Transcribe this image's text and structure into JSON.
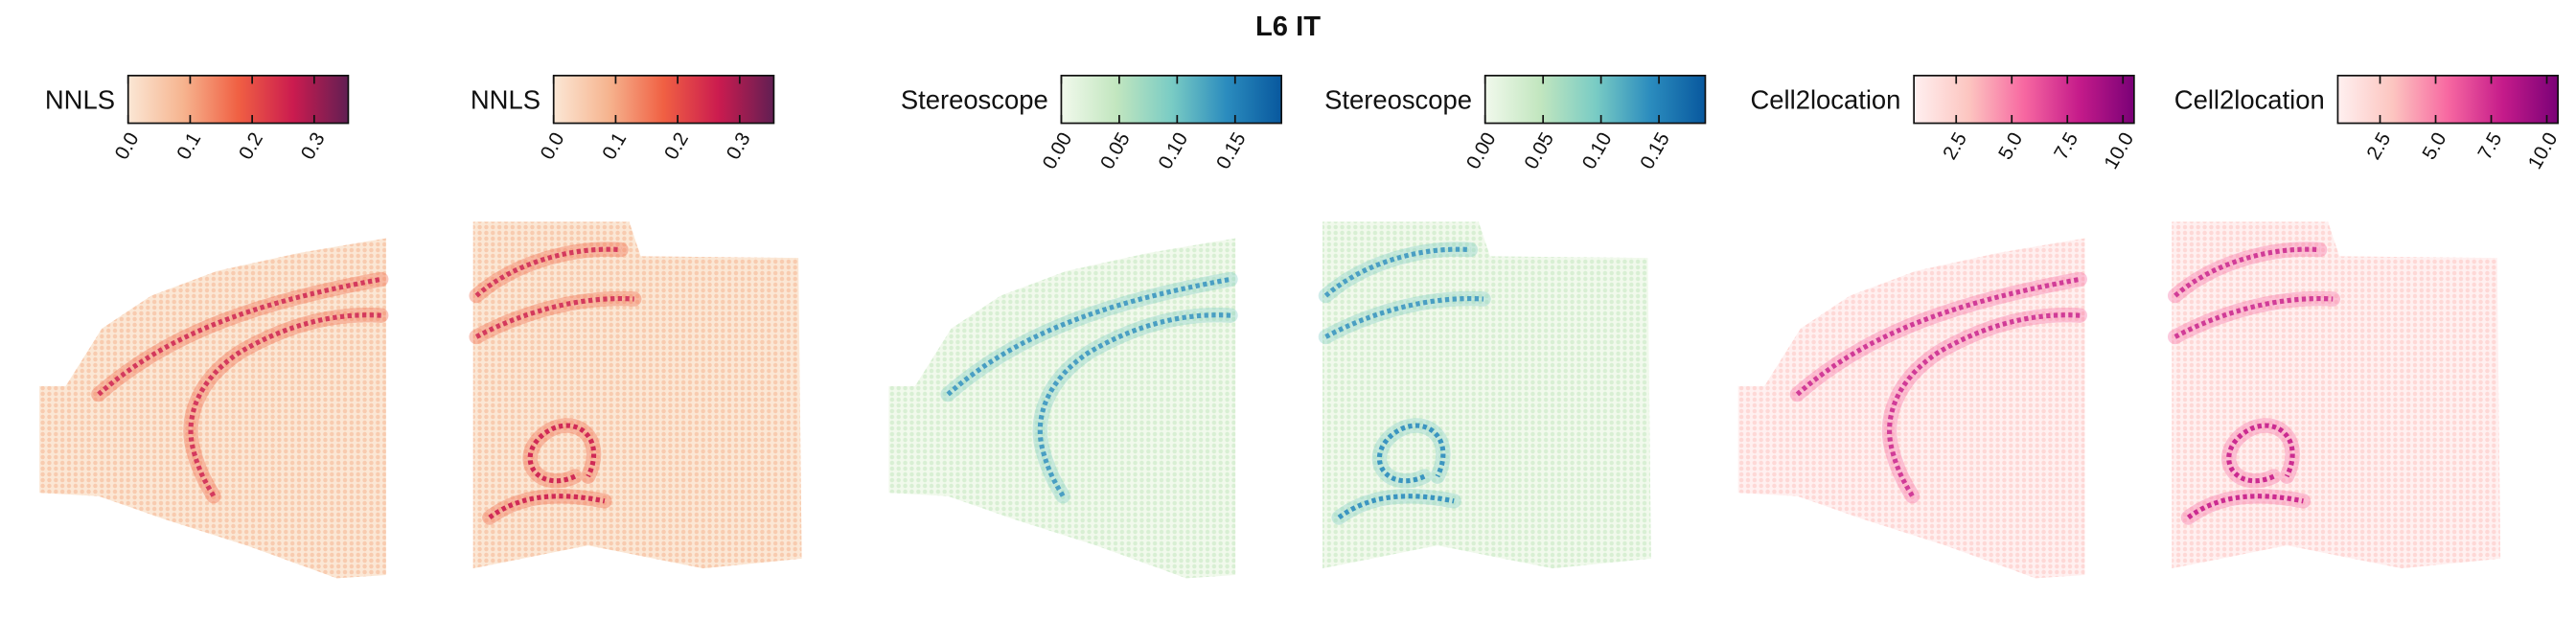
{
  "title": "L6 IT",
  "chart_data": [
    {
      "type": "spatial",
      "colorbar": {
        "label": "NNLS",
        "lim": [
          0,
          0.355
        ],
        "colors": [
          "#fbe7d5",
          "#f6b48f",
          "#f06043",
          "#cb1b4f",
          "#611f53"
        ],
        "ticks": [
          {
            "value": 0,
            "label": "0.0"
          },
          0.1,
          0.2,
          0.3
        ]
      }
    },
    {
      "type": "spatial",
      "colorbar": {
        "label": "NNLS",
        "lim": [
          0,
          0.355
        ],
        "colors": [
          "#fbe7d5",
          "#f6b48f",
          "#f06043",
          "#cb1b4f",
          "#611f53"
        ],
        "ticks": [
          {
            "value": 0,
            "label": "0.0"
          },
          0.1,
          0.2,
          0.3
        ]
      }
    },
    {
      "type": "spatial",
      "colorbar": {
        "label": "Stereoscope",
        "lim": [
          0,
          0.19
        ],
        "colors": [
          "#f1f9ec",
          "#c2e6bf",
          "#7accc4",
          "#2b8cbe",
          "#08589e"
        ],
        "ticks": [
          {
            "value": 0,
            "label": "0.00"
          },
          0.05,
          {
            "value": 0.1,
            "label": "0.10"
          },
          0.15
        ]
      }
    },
    {
      "type": "spatial",
      "colorbar": {
        "label": "Stereoscope",
        "lim": [
          0,
          0.19
        ],
        "colors": [
          "#f1f9ec",
          "#c2e6bf",
          "#7accc4",
          "#2b8cbe",
          "#08589e"
        ],
        "ticks": [
          {
            "value": 0,
            "label": "0.00"
          },
          0.05,
          {
            "value": 0.1,
            "label": "0.10"
          },
          0.15
        ]
      }
    },
    {
      "type": "spatial",
      "colorbar": {
        "label": "Cell2location",
        "lim": [
          0.6,
          10.5
        ],
        "colors": [
          "#fff0f0",
          "#fcc5c0",
          "#f768a1",
          "#c51b8a",
          "#7a0177"
        ],
        "ticks": [
          2.5,
          {
            "value": 5,
            "label": "5.0"
          },
          7.5,
          {
            "value": 10,
            "label": "10.0"
          }
        ]
      }
    },
    {
      "type": "spatial",
      "colorbar": {
        "label": "Cell2location",
        "lim": [
          0.6,
          10.5
        ],
        "colors": [
          "#fff0f0",
          "#fcc5c0",
          "#f768a1",
          "#c51b8a",
          "#7a0177"
        ],
        "ticks": [
          2.5,
          {
            "value": 5,
            "label": "5.0"
          },
          7.5,
          {
            "value": 10,
            "label": "10.0"
          }
        ]
      }
    }
  ]
}
